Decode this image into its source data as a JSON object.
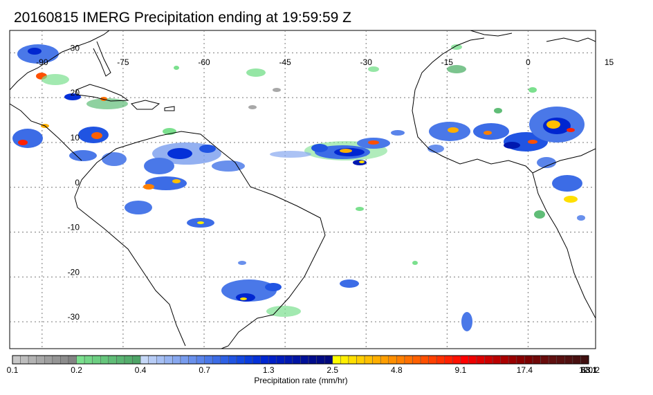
{
  "title": "20160815 IMERG Precipitation ending at 19:59:59 Z",
  "map": {
    "lon_range": [
      -96,
      12.5
    ],
    "lat_range": [
      -36,
      35
    ],
    "lon_ticks": [
      {
        "value": -90,
        "label": "-90"
      },
      {
        "value": -75,
        "label": "-75"
      },
      {
        "value": -60,
        "label": "-60"
      },
      {
        "value": -45,
        "label": "-45"
      },
      {
        "value": -30,
        "label": "-30"
      },
      {
        "value": -15,
        "label": "-15"
      },
      {
        "value": 0,
        "label": "0"
      },
      {
        "value": 15,
        "label": "15"
      }
    ],
    "lat_ticks": [
      {
        "value": 30,
        "label": "30"
      },
      {
        "value": 20,
        "label": "20"
      },
      {
        "value": 10,
        "label": "10"
      },
      {
        "value": 0,
        "label": "0"
      },
      {
        "value": -10,
        "label": "-10"
      },
      {
        "value": -20,
        "label": "-20"
      },
      {
        "value": -30,
        "label": "-30"
      }
    ],
    "coastline_color": "#000000",
    "grid_color": "#777777"
  },
  "colorbar": {
    "label": "Precipitation rate (mm/hr)",
    "tick_labels": [
      {
        "index": 0,
        "label": "0.1"
      },
      {
        "index": 8,
        "label": "0.2"
      },
      {
        "index": 16,
        "label": "0.4"
      },
      {
        "index": 24,
        "label": "0.7"
      },
      {
        "index": 32,
        "label": "1.3"
      },
      {
        "index": 40,
        "label": "2.5"
      },
      {
        "index": 48,
        "label": "4.8"
      },
      {
        "index": 56,
        "label": "9.1"
      },
      {
        "index": 64,
        "label": "17.4"
      },
      {
        "index": 72,
        "label": "33.1"
      },
      {
        "index": 80,
        "label": "63.1"
      },
      {
        "index": 88,
        "label": "120.2"
      }
    ],
    "colors": [
      "#c8c8c8",
      "#bdbdbd",
      "#b3b3b3",
      "#a8a8a8",
      "#9e9e9e",
      "#959595",
      "#8c8c8c",
      "#838383",
      "#7be08e",
      "#74d788",
      "#6dcf82",
      "#66c67c",
      "#60bd77",
      "#5ab572",
      "#54ad6c",
      "#4ea467",
      "#c6d8f8",
      "#b7ccf6",
      "#a7c0f4",
      "#97b4f2",
      "#88a8f0",
      "#789cee",
      "#6990ec",
      "#5a84ea",
      "#4a78e8",
      "#3c6ce6",
      "#2e60e4",
      "#2054e2",
      "#1448e0",
      "#0a3cdc",
      "#0430d8",
      "#0026d0",
      "#0020c8",
      "#001cbc",
      "#0018b0",
      "#0014a4",
      "#001098",
      "#000c8c",
      "#000a84",
      "#00087c",
      "#ffff00",
      "#ffef00",
      "#ffdf00",
      "#ffcf00",
      "#ffbf00",
      "#ffaf00",
      "#ff9f00",
      "#ff8f00",
      "#ff8000",
      "#ff7000",
      "#ff6000",
      "#ff5000",
      "#ff4000",
      "#ff3000",
      "#ff2000",
      "#ff1000",
      "#ff0000",
      "#ee0000",
      "#dd0000",
      "#cc0000",
      "#bb0000",
      "#aa0000",
      "#990000",
      "#880000",
      "#7a0000",
      "#700808",
      "#680c0c",
      "#601010",
      "#581010",
      "#501010",
      "#481010",
      "#401010"
    ]
  }
}
